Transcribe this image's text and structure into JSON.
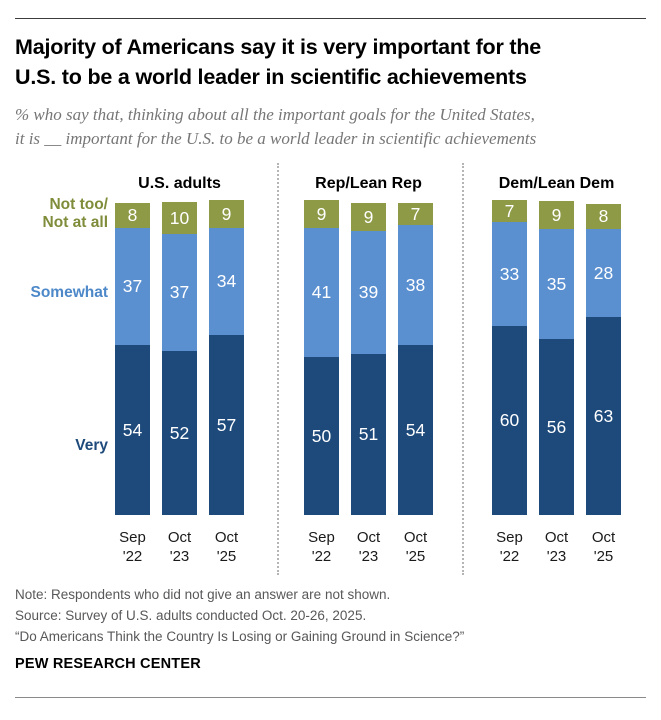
{
  "header": {
    "title_line1": "Majority of Americans say it is very important for the",
    "title_line2": "U.S. to be a world leader in scientific achievements",
    "subtitle_line1": "% who say that, thinking about all the important goals for the United States,",
    "subtitle_line2": "it is __ important for the U.S. to be a world leader in scientific achievements"
  },
  "chart_data": {
    "type": "bar",
    "stacked": true,
    "unit": "%",
    "ylim": [
      0,
      100
    ],
    "grid": false,
    "legend_position": "left",
    "categories": [
      "Sep '22",
      "Oct '23",
      "Oct '25"
    ],
    "side_labels": {
      "top_line1": "Not too/",
      "top_line2": "Not at all",
      "middle": "Somewhat",
      "bottom": "Very"
    },
    "segment_colors": {
      "very": "#1e4a7b",
      "somewhat": "#5a8fd0",
      "not_too": "#8e9a46"
    },
    "groups": [
      {
        "label": "U.S. adults",
        "series": [
          {
            "name": "Very",
            "values": [
              54,
              52,
              57
            ]
          },
          {
            "name": "Somewhat",
            "values": [
              37,
              37,
              34
            ]
          },
          {
            "name": "Not too/Not at all",
            "values": [
              8,
              10,
              9
            ]
          }
        ]
      },
      {
        "label": "Rep/Lean Rep",
        "series": [
          {
            "name": "Very",
            "values": [
              50,
              51,
              54
            ]
          },
          {
            "name": "Somewhat",
            "values": [
              41,
              39,
              38
            ]
          },
          {
            "name": "Not too/Not at all",
            "values": [
              9,
              9,
              7
            ]
          }
        ]
      },
      {
        "label": "Dem/Lean Dem",
        "series": [
          {
            "name": "Very",
            "values": [
              60,
              56,
              63
            ]
          },
          {
            "name": "Somewhat",
            "values": [
              33,
              35,
              28
            ]
          },
          {
            "name": "Not too/Not at all",
            "values": [
              7,
              9,
              8
            ]
          }
        ]
      }
    ]
  },
  "notes": {
    "note": "Note: Respondents who did not give an answer are not shown.",
    "source": "Source: Survey of U.S. adults conducted Oct. 20-26, 2025.",
    "report": "“Do Americans Think the Country Is Losing or Gaining Ground in Science?”"
  },
  "footer": {
    "brand": "PEW RESEARCH CENTER"
  }
}
